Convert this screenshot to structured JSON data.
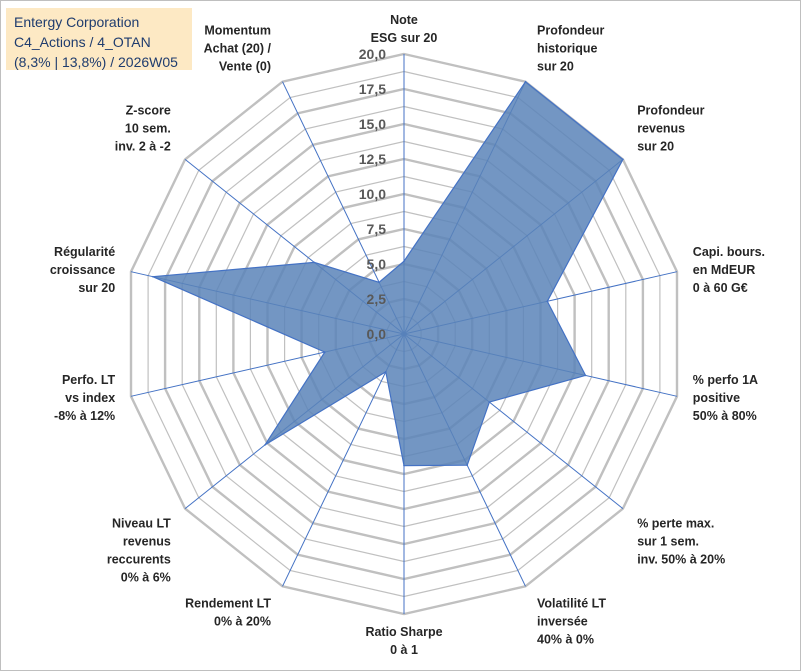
{
  "title": {
    "company": "Entergy Corporation",
    "portfolio": "C4_Actions / 4_OTAN",
    "stats": "(8,3% | 13,8%) / 2026W05"
  },
  "colors": {
    "fill": "#5b84b8",
    "stroke": "#4472c4",
    "grid": "#c0c0c0",
    "spoke": "#4472c4",
    "title_bg": "#fde9c4",
    "title_text": "#1f3c6e"
  },
  "chart_data": {
    "type": "radar",
    "title": "Entergy Corporation",
    "rmin": 0,
    "rmax": 20,
    "ticks": [
      "0,0",
      "2,5",
      "5,0",
      "7,5",
      "10,0",
      "12,5",
      "15,0",
      "17,5",
      "20,0"
    ],
    "axes": [
      {
        "label": [
          "Note",
          "ESG sur 20"
        ],
        "value": 5.2
      },
      {
        "label": [
          "Profondeur",
          "historique",
          "sur 20"
        ],
        "value": 20.0
      },
      {
        "label": [
          "Profondeur",
          "revenus",
          "sur 20"
        ],
        "value": 20.0
      },
      {
        "label": [
          "Capi. bours.",
          "en MdEUR",
          "0 à 60 G€"
        ],
        "value": 10.5
      },
      {
        "label": [
          "% perfo 1A",
          "positive",
          "50% à 80%"
        ],
        "value": 13.3
      },
      {
        "label": [
          "% perte max.",
          "sur 1 sem.",
          "inv. 50% à 20%"
        ],
        "value": 7.8
      },
      {
        "label": [
          "Volatilité LT",
          "inversée",
          "40% à 0%"
        ],
        "value": 10.4
      },
      {
        "label": [
          "Ratio Sharpe",
          "0 à 1"
        ],
        "value": 9.4
      },
      {
        "label": [
          "Rendement LT",
          "0% à 20%"
        ],
        "value": 3.0
      },
      {
        "label": [
          "Niveau LT",
          "revenus",
          "reccurents",
          "0% à 6%"
        ],
        "value": 12.7
      },
      {
        "label": [
          "Perfo. LT",
          "vs index",
          "-8% à 12%"
        ],
        "value": 5.8
      },
      {
        "label": [
          "Régularité",
          "croissance",
          "sur 20"
        ],
        "value": 18.4
      },
      {
        "label": [
          "Z-score",
          "10 sem.",
          "inv. 2 à -2"
        ],
        "value": 8.2
      },
      {
        "label": [
          "Momentum",
          "Achat (20) /",
          "Vente (0)"
        ],
        "value": 4.1
      }
    ]
  }
}
